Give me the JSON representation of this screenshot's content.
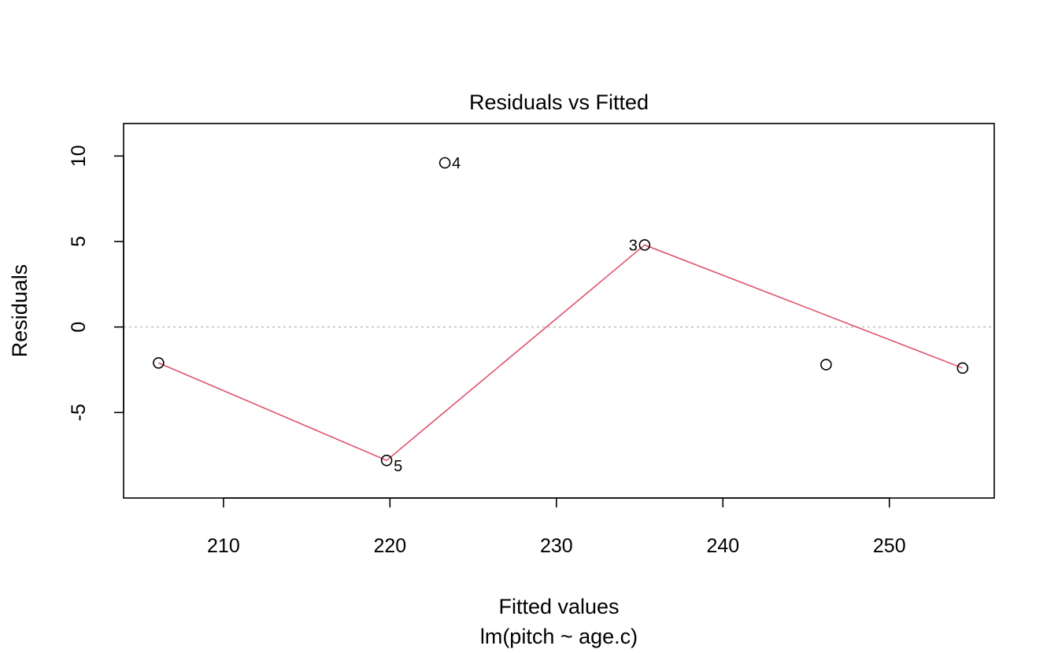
{
  "chart_data": {
    "type": "scatter",
    "title": "Residuals vs Fitted",
    "xlabel": "Fitted values",
    "xlabel_sub": "lm(pitch ~ age.c)",
    "ylabel": "Residuals",
    "xlim": [
      204.0,
      256.3
    ],
    "ylim": [
      -10.0,
      11.9
    ],
    "x_ticks": [
      210,
      220,
      230,
      240,
      250
    ],
    "y_ticks": [
      -5,
      0,
      5,
      10
    ],
    "x_tick_labels": [
      "210",
      "220",
      "230",
      "240",
      "250"
    ],
    "y_tick_labels": [
      "-5",
      "0",
      "5",
      "10"
    ],
    "points": [
      {
        "x": 206.1,
        "y": -2.1,
        "label": ""
      },
      {
        "x": 219.8,
        "y": -7.8,
        "label": "5",
        "label_side": "right"
      },
      {
        "x": 223.3,
        "y": 9.6,
        "label": "4",
        "label_side": "right"
      },
      {
        "x": 235.3,
        "y": 4.8,
        "label": "3",
        "label_side": "left"
      },
      {
        "x": 246.2,
        "y": -2.2,
        "label": ""
      },
      {
        "x": 254.4,
        "y": -2.4,
        "label": ""
      }
    ],
    "smoother": {
      "x": [
        206.1,
        219.8,
        235.3,
        254.4
      ],
      "y": [
        -2.1,
        -7.8,
        4.8,
        -2.4
      ],
      "color": "#DF536B"
    },
    "reference_line": {
      "y": 0,
      "style": "dotted",
      "color": "#BEBEBE"
    },
    "grid": false,
    "legend": "none"
  }
}
